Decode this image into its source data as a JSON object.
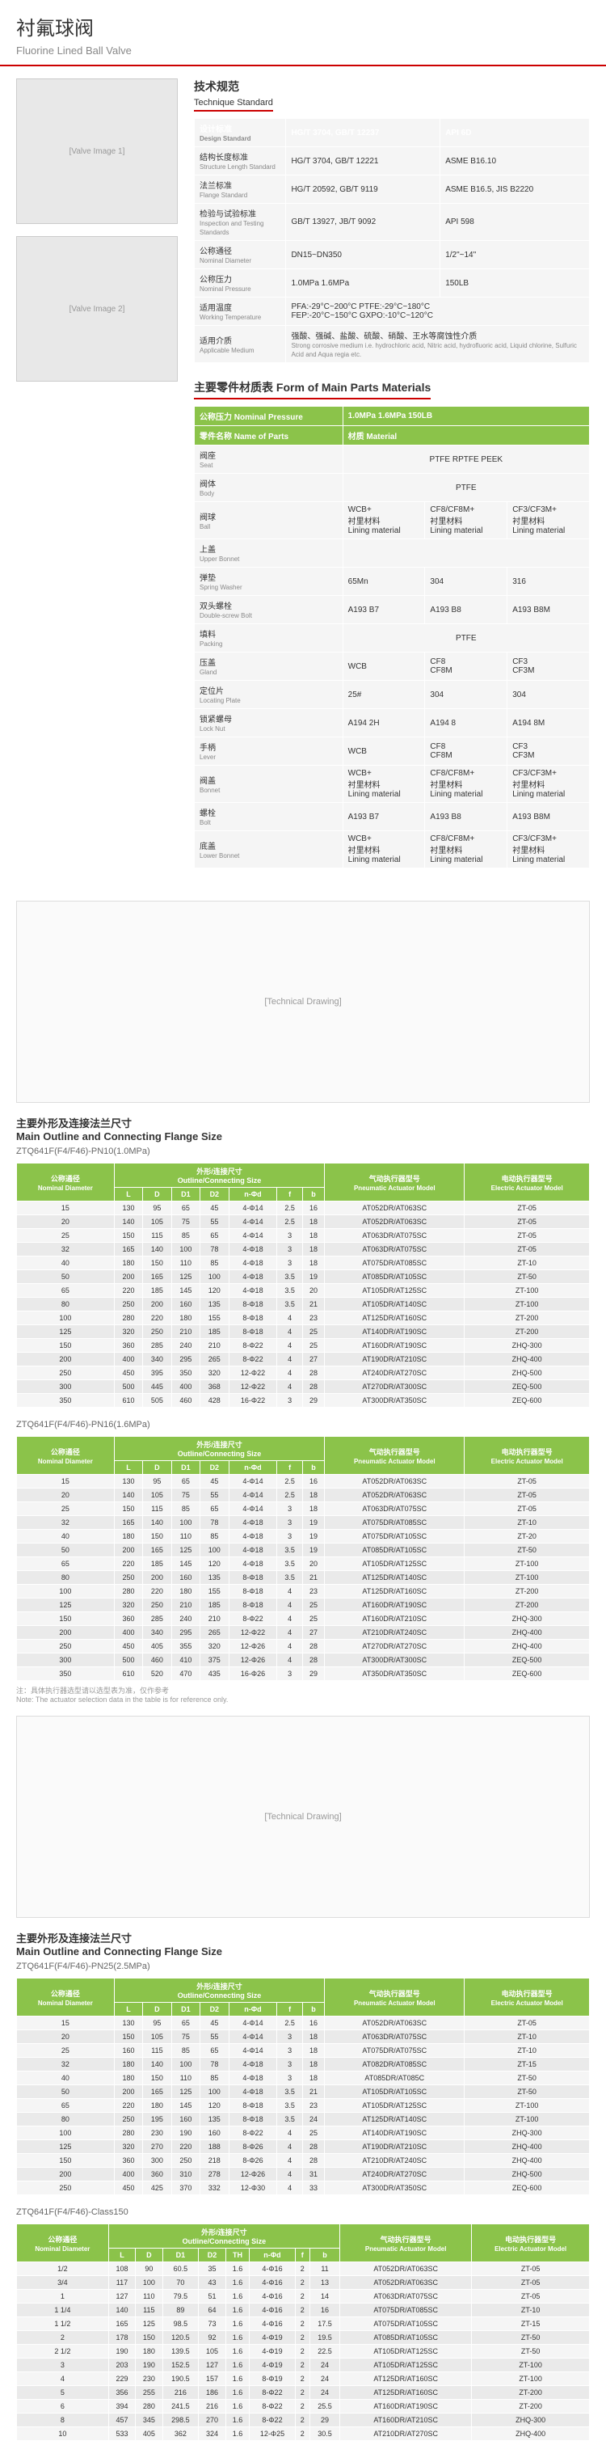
{
  "page": {
    "title_cn": "衬氟球阀",
    "title_en": "Fluorine Lined Ball Valve"
  },
  "tech_standard": {
    "title": "技术规范",
    "title_en": "Technique Standard",
    "headers": [
      "",
      "",
      ""
    ],
    "rows": [
      {
        "label_cn": "设计标准",
        "label_en": "Design Standard",
        "c1": "HG/T 3704, GB/T 12237",
        "c2": "API 6D"
      },
      {
        "label_cn": "结构长度标准",
        "label_en": "Structure Length Standard",
        "c1": "HG/T 3704, GB/T 12221",
        "c2": "ASME B16.10"
      },
      {
        "label_cn": "法兰标准",
        "label_en": "Flange Standard",
        "c1": "HG/T 20592, GB/T 9119",
        "c2": "ASME B16.5, JIS B2220"
      },
      {
        "label_cn": "检验与试验标准",
        "label_en": "Inspection and Testing Standards",
        "c1": "GB/T 13927, JB/T 9092",
        "c2": "API 598"
      },
      {
        "label_cn": "公称通径",
        "label_en": "Nominal Diameter",
        "c1": "DN15~DN350",
        "c2": "1/2\"~14\""
      },
      {
        "label_cn": "公称压力",
        "label_en": "Nominal Pressure",
        "c1": "1.0MPa    1.6MPa",
        "c2": "150LB"
      },
      {
        "label_cn": "适用温度",
        "label_en": "Working Temperature",
        "c1": "PFA:-29°C~200°C  PTFE:-29°C~180°C\nFEP:-20°C~150°C  GXPO:-10°C~120°C",
        "c2": ""
      },
      {
        "label_cn": "适用介质",
        "label_en": "Applicable Medium",
        "c1": "强酸、强碱、盐酸、硫酸、硝酸、王水等腐蚀性介质",
        "c2": ""
      }
    ],
    "medium_note": "Strong corrosive medium i.e. hydrochloric acid, Nitric acid, hydrofluoric acid, Liquid chlorine, Sulfuric Acid and Aqua regia etc."
  },
  "parts_materials": {
    "title": "主要零件材质表    Form of Main Parts Materials",
    "pressure_label": "公称压力\nNominal Pressure",
    "pressure_val": "1.0MPa  1.6MPa  150LB",
    "parts_label": "零件名称\nName of Parts",
    "material_label": "材质 Material",
    "rows": [
      {
        "p_cn": "阀座",
        "p_en": "Seat",
        "m1": "PTFE  RPTFE  PEEK",
        "m2": "",
        "m3": ""
      },
      {
        "p_cn": "阀体",
        "p_en": "Body",
        "m1": "PTFE",
        "m2": "",
        "m3": ""
      },
      {
        "p_cn": "阀球",
        "p_en": "Ball",
        "m1": "WCB+\n衬里材料\nLining material",
        "m2": "CF8/CF8M+\n衬里材料\nLining material",
        "m3": "CF3/CF3M+\n衬里材料\nLining material"
      },
      {
        "p_cn": "上盖",
        "p_en": "Upper Bonnet",
        "m1": "",
        "m2": "",
        "m3": ""
      },
      {
        "p_cn": "弹垫",
        "p_en": "Spring Washer",
        "m1": "65Mn",
        "m2": "304",
        "m3": "316"
      },
      {
        "p_cn": "双头螺栓",
        "p_en": "Double-screw Bolt",
        "m1": "A193 B7",
        "m2": "A193 B8",
        "m3": "A193 B8M"
      },
      {
        "p_cn": "填料",
        "p_en": "Packing",
        "m1": "PTFE",
        "m2": "",
        "m3": ""
      },
      {
        "p_cn": "压盖",
        "p_en": "Gland",
        "m1": "WCB",
        "m2": "CF8\nCF8M",
        "m3": "CF3\nCF3M"
      },
      {
        "p_cn": "定位片",
        "p_en": "Locating Plate",
        "m1": "25#",
        "m2": "304",
        "m3": "304"
      },
      {
        "p_cn": "锁紧螺母",
        "p_en": "Lock Nut",
        "m1": "A194 2H",
        "m2": "A194 8",
        "m3": "A194 8M"
      },
      {
        "p_cn": "手柄",
        "p_en": "Lever",
        "m1": "WCB",
        "m2": "CF8\nCF8M",
        "m3": "CF3\nCF3M"
      },
      {
        "p_cn": "阀盖",
        "p_en": "Bonnet",
        "m1": "WCB+\n衬里材料\nLining material",
        "m2": "CF8/CF8M+\n衬里材料\nLining material",
        "m3": "CF3/CF3M+\n衬里材料\nLining material"
      },
      {
        "p_cn": "螺栓",
        "p_en": "Bolt",
        "m1": "A193 B7",
        "m2": "A193 B8",
        "m3": "A193 B8M"
      },
      {
        "p_cn": "底盖",
        "p_en": "Lower Bonnet",
        "m1": "WCB+\n衬里材料\nLining material",
        "m2": "CF8/CF8M+\n衬里材料\nLining material",
        "m3": "CF3/CF3M+\n衬里材料\nLining material"
      }
    ]
  },
  "outline_title": "主要外形及连接法兰尺寸",
  "outline_title_en": "Main Outline and Connecting Flange Size",
  "table1": {
    "title": "ZTQ641F(F4/F46)-PN10(1.0MPa)",
    "headers": {
      "nom_cn": "公称通径",
      "nom_en": "Nominal Diameter",
      "outline": "外形/连接尺寸\nOutline/Connecting Size",
      "pneu_cn": "气动执行器型号",
      "pneu_en": "Pneumatic Actuator Model",
      "elec_cn": "电动执行器型号",
      "elec_en": "Electric Actuator Model"
    },
    "cols": [
      "mm",
      "L",
      "D",
      "D1",
      "D2",
      "n-Φd",
      "f",
      "b",
      "",
      ""
    ],
    "rows": [
      [
        "15",
        "130",
        "95",
        "65",
        "45",
        "4-Φ14",
        "2.5",
        "16",
        "AT052DR/AT063SC",
        "ZT-05"
      ],
      [
        "20",
        "140",
        "105",
        "75",
        "55",
        "4-Φ14",
        "2.5",
        "18",
        "AT052DR/AT063SC",
        "ZT-05"
      ],
      [
        "25",
        "150",
        "115",
        "85",
        "65",
        "4-Φ14",
        "3",
        "18",
        "AT063DR/AT075SC",
        "ZT-05"
      ],
      [
        "32",
        "165",
        "140",
        "100",
        "78",
        "4-Φ18",
        "3",
        "18",
        "AT063DR/AT075SC",
        "ZT-05"
      ],
      [
        "40",
        "180",
        "150",
        "110",
        "85",
        "4-Φ18",
        "3",
        "18",
        "AT075DR/AT085SC",
        "ZT-10"
      ],
      [
        "50",
        "200",
        "165",
        "125",
        "100",
        "4-Φ18",
        "3.5",
        "19",
        "AT085DR/AT105SC",
        "ZT-50"
      ],
      [
        "65",
        "220",
        "185",
        "145",
        "120",
        "4-Φ18",
        "3.5",
        "20",
        "AT105DR/AT125SC",
        "ZT-100"
      ],
      [
        "80",
        "250",
        "200",
        "160",
        "135",
        "8-Φ18",
        "3.5",
        "21",
        "AT105DR/AT140SC",
        "ZT-100"
      ],
      [
        "100",
        "280",
        "220",
        "180",
        "155",
        "8-Φ18",
        "4",
        "23",
        "AT125DR/AT160SC",
        "ZT-200"
      ],
      [
        "125",
        "320",
        "250",
        "210",
        "185",
        "8-Φ18",
        "4",
        "25",
        "AT140DR/AT190SC",
        "ZT-200"
      ],
      [
        "150",
        "360",
        "285",
        "240",
        "210",
        "8-Φ22",
        "4",
        "25",
        "AT160DR/AT190SC",
        "ZHQ-300"
      ],
      [
        "200",
        "400",
        "340",
        "295",
        "265",
        "8-Φ22",
        "4",
        "27",
        "AT190DR/AT210SC",
        "ZHQ-400"
      ],
      [
        "250",
        "450",
        "395",
        "350",
        "320",
        "12-Φ22",
        "4",
        "28",
        "AT240DR/AT270SC",
        "ZHQ-500"
      ],
      [
        "300",
        "500",
        "445",
        "400",
        "368",
        "12-Φ22",
        "4",
        "28",
        "AT270DR/AT300SC",
        "ZEQ-500"
      ],
      [
        "350",
        "610",
        "505",
        "460",
        "428",
        "16-Φ22",
        "3",
        "29",
        "AT300DR/AT350SC",
        "ZEQ-600"
      ]
    ]
  },
  "table2": {
    "title": "ZTQ641F(F4/F46)-PN16(1.6MPa)",
    "rows": [
      [
        "15",
        "130",
        "95",
        "65",
        "45",
        "4-Φ14",
        "2.5",
        "16",
        "AT052DR/AT063SC",
        "ZT-05"
      ],
      [
        "20",
        "140",
        "105",
        "75",
        "55",
        "4-Φ14",
        "2.5",
        "18",
        "AT052DR/AT063SC",
        "ZT-05"
      ],
      [
        "25",
        "150",
        "115",
        "85",
        "65",
        "4-Φ14",
        "3",
        "18",
        "AT063DR/AT075SC",
        "ZT-05"
      ],
      [
        "32",
        "165",
        "140",
        "100",
        "78",
        "4-Φ18",
        "3",
        "19",
        "AT075DR/AT085SC",
        "ZT-10"
      ],
      [
        "40",
        "180",
        "150",
        "110",
        "85",
        "4-Φ18",
        "3",
        "19",
        "AT075DR/AT105SC",
        "ZT-20"
      ],
      [
        "50",
        "200",
        "165",
        "125",
        "100",
        "4-Φ18",
        "3.5",
        "19",
        "AT085DR/AT105SC",
        "ZT-50"
      ],
      [
        "65",
        "220",
        "185",
        "145",
        "120",
        "4-Φ18",
        "3.5",
        "20",
        "AT105DR/AT125SC",
        "ZT-100"
      ],
      [
        "80",
        "250",
        "200",
        "160",
        "135",
        "8-Φ18",
        "3.5",
        "21",
        "AT125DR/AT140SC",
        "ZT-100"
      ],
      [
        "100",
        "280",
        "220",
        "180",
        "155",
        "8-Φ18",
        "4",
        "23",
        "AT125DR/AT160SC",
        "ZT-200"
      ],
      [
        "125",
        "320",
        "250",
        "210",
        "185",
        "8-Φ18",
        "4",
        "25",
        "AT160DR/AT190SC",
        "ZT-200"
      ],
      [
        "150",
        "360",
        "285",
        "240",
        "210",
        "8-Φ22",
        "4",
        "25",
        "AT160DR/AT210SC",
        "ZHQ-300"
      ],
      [
        "200",
        "400",
        "340",
        "295",
        "265",
        "12-Φ22",
        "4",
        "27",
        "AT210DR/AT240SC",
        "ZHQ-400"
      ],
      [
        "250",
        "450",
        "405",
        "355",
        "320",
        "12-Φ26",
        "4",
        "28",
        "AT270DR/AT270SC",
        "ZHQ-400"
      ],
      [
        "300",
        "500",
        "460",
        "410",
        "375",
        "12-Φ26",
        "4",
        "28",
        "AT300DR/AT300SC",
        "ZEQ-500"
      ],
      [
        "350",
        "610",
        "520",
        "470",
        "435",
        "16-Φ26",
        "3",
        "29",
        "AT350DR/AT350SC",
        "ZEQ-600"
      ]
    ]
  },
  "table3": {
    "title": "ZTQ641F(F4/F46)-PN25(2.5MPa)",
    "cols": [
      "mm",
      "L",
      "D",
      "D1",
      "D2",
      "n-Φd",
      "f",
      "b",
      "",
      ""
    ],
    "rows": [
      [
        "15",
        "130",
        "95",
        "65",
        "45",
        "4-Φ14",
        "2.5",
        "16",
        "AT052DR/AT063SC",
        "ZT-05"
      ],
      [
        "20",
        "150",
        "105",
        "75",
        "55",
        "4-Φ14",
        "3",
        "18",
        "AT063DR/AT075SC",
        "ZT-10"
      ],
      [
        "25",
        "160",
        "115",
        "85",
        "65",
        "4-Φ14",
        "3",
        "18",
        "AT075DR/AT075SC",
        "ZT-10"
      ],
      [
        "32",
        "180",
        "140",
        "100",
        "78",
        "4-Φ18",
        "3",
        "18",
        "AT082DR/AT085SC",
        "ZT-15"
      ],
      [
        "40",
        "180",
        "150",
        "110",
        "85",
        "4-Φ18",
        "3",
        "18",
        "AT085DR/AT085C",
        "ZT-50"
      ],
      [
        "50",
        "200",
        "165",
        "125",
        "100",
        "4-Φ18",
        "3.5",
        "21",
        "AT105DR/AT105SC",
        "ZT-50"
      ],
      [
        "65",
        "220",
        "180",
        "145",
        "120",
        "8-Φ18",
        "3.5",
        "23",
        "AT105DR/AT125SC",
        "ZT-100"
      ],
      [
        "80",
        "250",
        "195",
        "160",
        "135",
        "8-Φ18",
        "3.5",
        "24",
        "AT125DR/AT140SC",
        "ZT-100"
      ],
      [
        "100",
        "280",
        "230",
        "190",
        "160",
        "8-Φ22",
        "4",
        "25",
        "AT140DR/AT190SC",
        "ZHQ-300"
      ],
      [
        "125",
        "320",
        "270",
        "220",
        "188",
        "8-Φ26",
        "4",
        "28",
        "AT190DR/AT210SC",
        "ZHQ-400"
      ],
      [
        "150",
        "360",
        "300",
        "250",
        "218",
        "8-Φ26",
        "4",
        "28",
        "AT210DR/AT240SC",
        "ZHQ-400"
      ],
      [
        "200",
        "400",
        "360",
        "310",
        "278",
        "12-Φ26",
        "4",
        "31",
        "AT240DR/AT270SC",
        "ZHQ-500"
      ],
      [
        "250",
        "450",
        "425",
        "370",
        "332",
        "12-Φ30",
        "4",
        "33",
        "AT300DR/AT350SC",
        "ZEQ-600"
      ]
    ]
  },
  "table4": {
    "title": "ZTQ641F(F4/F46)-Class150",
    "cols": [
      "in",
      "L",
      "D",
      "D1",
      "D2",
      "TH",
      "n-Φd",
      "f",
      "b",
      "",
      ""
    ],
    "rows": [
      [
        "1/2",
        "108",
        "90",
        "60.5",
        "35",
        "1.6",
        "4-Φ16",
        "2",
        "11",
        "AT052DR/AT063SC",
        "ZT-05"
      ],
      [
        "3/4",
        "117",
        "100",
        "70",
        "43",
        "1.6",
        "4-Φ16",
        "2",
        "13",
        "AT052DR/AT063SC",
        "ZT-05"
      ],
      [
        "1",
        "127",
        "110",
        "79.5",
        "51",
        "1.6",
        "4-Φ16",
        "2",
        "14",
        "AT063DR/AT075SC",
        "ZT-05"
      ],
      [
        "1 1/4",
        "140",
        "115",
        "89",
        "64",
        "1.6",
        "4-Φ16",
        "2",
        "16",
        "AT075DR/AT085SC",
        "ZT-10"
      ],
      [
        "1 1/2",
        "165",
        "125",
        "98.5",
        "73",
        "1.6",
        "4-Φ16",
        "2",
        "17.5",
        "AT075DR/AT105SC",
        "ZT-15"
      ],
      [
        "2",
        "178",
        "150",
        "120.5",
        "92",
        "1.6",
        "4-Φ19",
        "2",
        "19.5",
        "AT085DR/AT105SC",
        "ZT-50"
      ],
      [
        "2 1/2",
        "190",
        "180",
        "139.5",
        "105",
        "1.6",
        "4-Φ19",
        "2",
        "22.5",
        "AT105DR/AT125SC",
        "ZT-50"
      ],
      [
        "3",
        "203",
        "190",
        "152.5",
        "127",
        "1.6",
        "4-Φ19",
        "2",
        "24",
        "AT105DR/AT125SC",
        "ZT-100"
      ],
      [
        "4",
        "229",
        "230",
        "190.5",
        "157",
        "1.6",
        "8-Φ19",
        "2",
        "24",
        "AT125DR/AT160SC",
        "ZT-100"
      ],
      [
        "5",
        "356",
        "255",
        "216",
        "186",
        "1.6",
        "8-Φ22",
        "2",
        "24",
        "AT125DR/AT160SC",
        "ZT-200"
      ],
      [
        "6",
        "394",
        "280",
        "241.5",
        "216",
        "1.6",
        "8-Φ22",
        "2",
        "25.5",
        "AT160DR/AT190SC",
        "ZT-200"
      ],
      [
        "8",
        "457",
        "345",
        "298.5",
        "270",
        "1.6",
        "8-Φ22",
        "2",
        "29",
        "AT160DR/AT210SC",
        "ZHQ-300"
      ],
      [
        "10",
        "533",
        "405",
        "362",
        "324",
        "1.6",
        "12-Φ25",
        "2",
        "30.5",
        "AT210DR/AT270SC",
        "ZHQ-400"
      ]
    ]
  },
  "note": "注：具体执行器选型请以选型表为准，仅作参考",
  "note_en": "Note: The actuator selection data in the table is for reference only."
}
